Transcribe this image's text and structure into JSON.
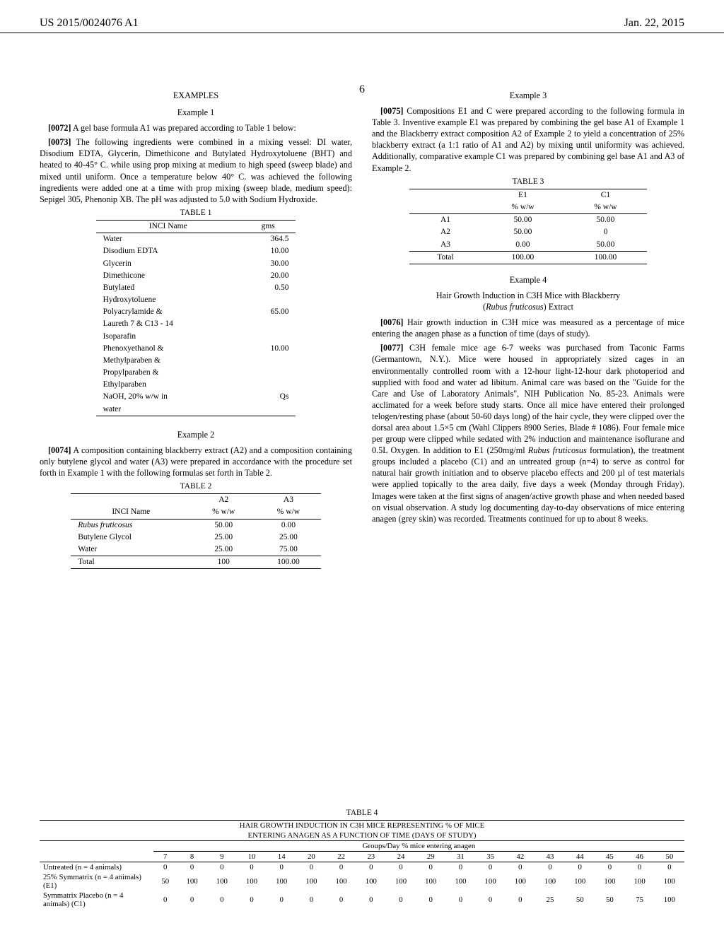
{
  "header": {
    "pub": "US 2015/0024076 A1",
    "date": "Jan. 22, 2015"
  },
  "pageNumber": "6",
  "examplesHeading": "EXAMPLES",
  "ex1": {
    "head": "Example 1",
    "p1_num": "[0072]",
    "p1_text": " A gel base formula A1 was prepared according to Table 1 below:",
    "p2_num": "[0073]",
    "p2_text": " The following ingredients were combined in a mixing vessel: DI water, Disodium EDTA, Glycerin, Dimethicone and Butylated Hydroxytoluene (BHT) and heated to 40-45° C. while using prop mixing at medium to high speed (sweep blade) and mixed until uniform. Once a temperature below 40° C. was achieved the following ingredients were added one at a time with prop mixing (sweep blade, medium speed): Sepigel 305, Phenonip XB. The pH was adjusted to 5.0 with Sodium Hydroxide."
  },
  "table1": {
    "caption": "TABLE 1",
    "col1": "INCI Name",
    "col2": "gms",
    "rows": [
      {
        "n": "Water",
        "v": "364.5"
      },
      {
        "n": "Disodium EDTA",
        "v": "10.00"
      },
      {
        "n": "Glycerin",
        "v": "30.00"
      },
      {
        "n": "Dimethicone",
        "v": "20.00"
      },
      {
        "n": "Butylated",
        "v": "0.50"
      },
      {
        "n": "Hydroxytoluene",
        "v": ""
      },
      {
        "n": "Polyacrylamide &",
        "v": "65.00"
      },
      {
        "n": "Laureth 7 & C13 - 14",
        "v": ""
      },
      {
        "n": "Isoparafin",
        "v": ""
      },
      {
        "n": "Phenoxyethanol &",
        "v": "10.00"
      },
      {
        "n": "Methylparaben &",
        "v": ""
      },
      {
        "n": "Propylparaben &",
        "v": ""
      },
      {
        "n": "Ethylparaben",
        "v": ""
      },
      {
        "n": "NaOH, 20% w/w in",
        "v": "Qs"
      },
      {
        "n": "water",
        "v": ""
      }
    ]
  },
  "ex2": {
    "head": "Example 2",
    "p1_num": "[0074]",
    "p1_text": " A composition containing blackberry extract (A2) and a composition containing only butylene glycol and water (A3) were prepared in accordance with the procedure set forth in Example 1 with the following formulas set forth in Table 2."
  },
  "table2": {
    "caption": "TABLE 2",
    "c1": "INCI Name",
    "c2": "A2",
    "c2b": "% w/w",
    "c3": "A3",
    "c3b": "% w/w",
    "rows": [
      {
        "n": "Rubus fruticosus",
        "a": "50.00",
        "b": "0.00",
        "it": true
      },
      {
        "n": "Butylene Glycol",
        "a": "25.00",
        "b": "25.00"
      },
      {
        "n": "Water",
        "a": "25.00",
        "b": "75.00"
      }
    ],
    "total": {
      "n": "Total",
      "a": "100",
      "b": "100.00"
    }
  },
  "ex3": {
    "head": "Example 3",
    "p1_num": "[0075]",
    "p1_text": " Compositions E1 and C were prepared according to the following formula in Table 3. Inventive example E1 was prepared by combining the gel base A1 of Example 1 and the Blackberry extract composition A2 of Example 2 to yield a concentration of 25% blackberry extract (a 1:1 ratio of A1 and A2) by mixing until uniformity was achieved. Additionally, comparative example C1 was prepared by combining gel base A1 and A3 of Example 2."
  },
  "table3": {
    "caption": "TABLE 3",
    "c2": "E1",
    "c2b": "% w/w",
    "c3": "C1",
    "c3b": "% w/w",
    "rows": [
      {
        "n": "A1",
        "a": "50.00",
        "b": "50.00"
      },
      {
        "n": "A2",
        "a": "50.00",
        "b": "0"
      },
      {
        "n": "A3",
        "a": "0.00",
        "b": "50.00"
      }
    ],
    "total": {
      "n": "Total",
      "a": "100.00",
      "b": "100.00"
    }
  },
  "ex4": {
    "head": "Example 4",
    "sub1": "Hair Growth Induction in C3H Mice with Blackberry",
    "sub2": "(Rubus fruticosus) Extract",
    "p1_num": "[0076]",
    "p1_text": " Hair growth induction in C3H mice was measured as a percentage of mice entering the anagen phase as a function of time (days of study).",
    "p2_num": "[0077]",
    "p2_text": " C3H female mice age 6-7 weeks was purchased from Taconic Farms (Germantown, N.Y.). Mice were housed in appropriately sized cages in an environmentally controlled room with a 12-hour light-12-hour dark photoperiod and supplied with food and water ad libitum. Animal care was based on the \"Guide for the Care and Use of Laboratory Animals\", NIH Publication No. 85-23. Animals were acclimated for a week before study starts. Once all mice have entered their prolonged telogen/resting phase (about 50-60 days long) of the hair cycle, they were clipped over the dorsal area about 1.5×5 cm (Wahl Clippers 8900 Series, Blade # 1086). Four female mice per group were clipped while sedated with 2% induction and maintenance isoflurane and 0.5L Oxygen. In addition to E1 (250mg/ml ",
    "p2_it": "Rubus fruticosus",
    "p2_text2": " formulation), the treatment groups included a placebo (C1) and an untreated group (n=4) to serve as control for natural hair growth initiation and to observe placebo effects and 200 µl of test materials were applied topically to the area daily, five days a week (Monday through Friday). Images were taken at the first signs of anagen/active growth phase and when needed based on visual observation. A study log documenting day-to-day observations of mice entering anagen (grey skin) was recorded. Treatments continued for up to about 8 weeks."
  },
  "table4": {
    "caption": "TABLE 4",
    "title1": "HAIR GROWTH INDUCTION IN C3H MICE REPRESENTING % OF MICE",
    "title2": "ENTERING ANAGEN AS A FUNCTION OF TIME (DAYS OF STUDY)",
    "grplabel": "Groups/Day % mice entering anagen",
    "days": [
      "7",
      "8",
      "9",
      "10",
      "14",
      "20",
      "22",
      "23",
      "24",
      "29",
      "31",
      "35",
      "42",
      "43",
      "44",
      "45",
      "46",
      "50"
    ],
    "rows": [
      {
        "n": "Untreated (n = 4 animals)",
        "v": [
          "0",
          "0",
          "0",
          "0",
          "0",
          "0",
          "0",
          "0",
          "0",
          "0",
          "0",
          "0",
          "0",
          "0",
          "0",
          "0",
          "0",
          "0"
        ]
      },
      {
        "n": "25% Symmatrix (n = 4 animals) (E1)",
        "v": [
          "50",
          "100",
          "100",
          "100",
          "100",
          "100",
          "100",
          "100",
          "100",
          "100",
          "100",
          "100",
          "100",
          "100",
          "100",
          "100",
          "100",
          "100"
        ]
      },
      {
        "n": "Symmatrix Placebo (n = 4 animals) (C1)",
        "v": [
          "0",
          "0",
          "0",
          "0",
          "0",
          "0",
          "0",
          "0",
          "0",
          "0",
          "0",
          "0",
          "0",
          "25",
          "50",
          "50",
          "75",
          "100"
        ]
      }
    ]
  }
}
